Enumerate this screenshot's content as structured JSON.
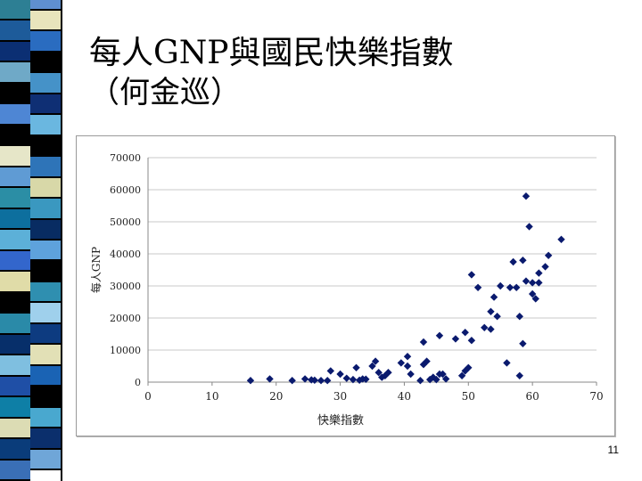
{
  "slide": {
    "title": "每人GNP與國民快樂指數",
    "subtitle": "（何金巡）",
    "page_number": "11",
    "stripe_colors": {
      "left": [
        "#2d7f94",
        "#1d5b9a",
        "#0b2f73",
        "#6fa9c7",
        "#000000",
        "#4e86d4",
        "#000000",
        "#e6e6c8",
        "#5f9bd4",
        "#2b8ea5",
        "#0d6f9e",
        "#5cb0d8",
        "#3366cc",
        "#e0dca8",
        "#000000",
        "#2a8aa8",
        "#072f6a",
        "#7fbfe0",
        "#1f4fa6",
        "#0e7fa6",
        "#dcdcb4",
        "#0a3c7a",
        "#3a6fb6"
      ],
      "right": [
        "#5f8fd0",
        "#e8e4bc",
        "#2a6cc0",
        "#000000",
        "#4592c8",
        "#0f2f74",
        "#6ab7e0",
        "#000000",
        "#2e74b8",
        "#d8d8a8",
        "#3a98c0",
        "#082c62",
        "#5ea2dc",
        "#000000",
        "#2f8fb0",
        "#9fd0ec",
        "#0d3b80",
        "#e2e0b6",
        "#1a63b4",
        "#000000",
        "#49a8cf",
        "#0b2f6c",
        "#6fa6d8"
      ]
    }
  },
  "chart_data": {
    "type": "scatter",
    "title": "",
    "xlabel": "快樂指數",
    "ylabel": "每人GNP",
    "xlim": [
      0,
      70
    ],
    "ylim": [
      0,
      70000
    ],
    "x_ticks": [
      0,
      10,
      20,
      30,
      40,
      50,
      60,
      70
    ],
    "y_ticks": [
      0,
      10000,
      20000,
      30000,
      40000,
      50000,
      60000,
      70000
    ],
    "x_tick_labels": [
      "0",
      "10",
      "20",
      "30",
      "40",
      "50",
      "60",
      "70"
    ],
    "y_tick_labels": [
      "0",
      "10000",
      "20000",
      "30000",
      "40000",
      "50000",
      "60000",
      "70000"
    ],
    "grid": "horizontal",
    "marker_color": "#0a1a6e",
    "gridline_color": "#c8c8c8",
    "points": [
      [
        16,
        500
      ],
      [
        19,
        1000
      ],
      [
        22.5,
        500
      ],
      [
        24.5,
        1000
      ],
      [
        25.5,
        700
      ],
      [
        26,
        600
      ],
      [
        27,
        500
      ],
      [
        28,
        500
      ],
      [
        28.5,
        3500
      ],
      [
        30,
        2500
      ],
      [
        31,
        1200
      ],
      [
        32,
        800
      ],
      [
        32.5,
        4500
      ],
      [
        33,
        600
      ],
      [
        33.5,
        1000
      ],
      [
        34,
        900
      ],
      [
        35,
        5000
      ],
      [
        35.5,
        6500
      ],
      [
        36,
        3000
      ],
      [
        36.5,
        1500
      ],
      [
        37,
        2000
      ],
      [
        37.5,
        3000
      ],
      [
        39.5,
        6000
      ],
      [
        40.5,
        8000
      ],
      [
        40.5,
        5000
      ],
      [
        41,
        2500
      ],
      [
        42.5,
        500
      ],
      [
        43,
        5500
      ],
      [
        43,
        12500
      ],
      [
        43.5,
        6500
      ],
      [
        44,
        800
      ],
      [
        44.5,
        1500
      ],
      [
        45,
        800
      ],
      [
        45.5,
        14500
      ],
      [
        45.5,
        2500
      ],
      [
        46,
        2500
      ],
      [
        46.5,
        1000
      ],
      [
        48,
        13500
      ],
      [
        49,
        2000
      ],
      [
        49.5,
        15500
      ],
      [
        49.5,
        3500
      ],
      [
        50,
        4500
      ],
      [
        50.5,
        13000
      ],
      [
        50.5,
        33500
      ],
      [
        51.5,
        29500
      ],
      [
        52.5,
        17000
      ],
      [
        53.5,
        16500
      ],
      [
        53.5,
        22000
      ],
      [
        54,
        26500
      ],
      [
        54.5,
        20500
      ],
      [
        55,
        30000
      ],
      [
        56,
        6000
      ],
      [
        56.5,
        29500
      ],
      [
        57,
        37500
      ],
      [
        57.5,
        29500
      ],
      [
        58,
        20500
      ],
      [
        58,
        2000
      ],
      [
        58.5,
        38000
      ],
      [
        58.5,
        12000
      ],
      [
        59,
        31500
      ],
      [
        59,
        58000
      ],
      [
        59.5,
        48500
      ],
      [
        60,
        31000
      ],
      [
        60,
        27500
      ],
      [
        60.5,
        26000
      ],
      [
        61,
        34000
      ],
      [
        61,
        31000
      ],
      [
        62,
        36000
      ],
      [
        62.5,
        39500
      ],
      [
        64.5,
        44500
      ]
    ]
  }
}
